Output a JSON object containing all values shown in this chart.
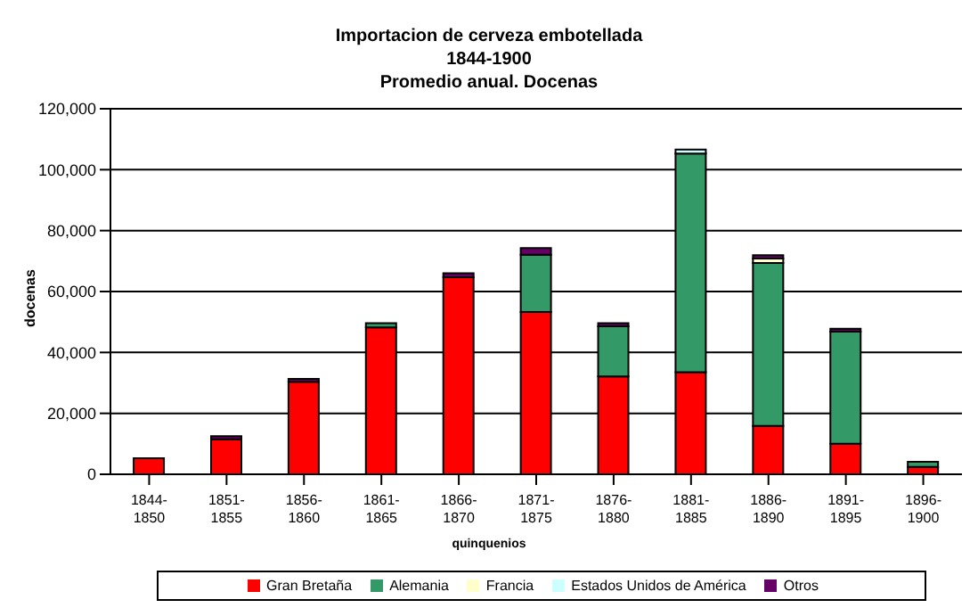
{
  "chart_data": {
    "type": "bar",
    "stacked": true,
    "title": "Importacion de cerveza embotellada",
    "subtitle": "1844-1900\nPromedio anual. Docenas",
    "xlabel": "quinquenios",
    "ylabel": "docenas",
    "categories": [
      "1844-1850",
      "1851-1855",
      "1856-1860",
      "1861-1865",
      "1866-1870",
      "1871-1875",
      "1876-1880",
      "1881-1885",
      "1886-1890",
      "1891-1895",
      "1896-1900"
    ],
    "series": [
      {
        "name": "Gran Bretaña",
        "color": "#ff0000",
        "values": [
          5300,
          11500,
          30400,
          48200,
          64700,
          53300,
          32100,
          33500,
          15900,
          10000,
          2400
        ]
      },
      {
        "name": "Alemania",
        "color": "#339966",
        "values": [
          null,
          null,
          null,
          1400,
          null,
          18800,
          16500,
          71800,
          53500,
          36800,
          1700
        ]
      },
      {
        "name": "Francia",
        "color": "#ffffcc",
        "values": [
          null,
          null,
          null,
          null,
          null,
          null,
          null,
          null,
          1400,
          null,
          null
        ]
      },
      {
        "name": "Estados Unidos de América",
        "color": "#ccffff",
        "values": [
          null,
          null,
          null,
          null,
          null,
          null,
          null,
          1300,
          null,
          null,
          null
        ]
      },
      {
        "name": "Otros",
        "color": "#660066",
        "values": [
          null,
          1000,
          900,
          null,
          1300,
          2200,
          1000,
          null,
          1100,
          1000,
          null
        ]
      }
    ],
    "ylim": [
      0,
      120000
    ],
    "yticks": [
      {
        "value": 0,
        "label": "0"
      },
      {
        "value": 20000,
        "label": "20,000"
      },
      {
        "value": 40000,
        "label": "40,000"
      },
      {
        "value": 60000,
        "label": "60,000"
      },
      {
        "value": 80000,
        "label": "80,000"
      },
      {
        "value": 100000,
        "label": "100,000"
      },
      {
        "value": 120000,
        "label": "120,000"
      }
    ],
    "grid": "y",
    "legend": "bottom"
  }
}
